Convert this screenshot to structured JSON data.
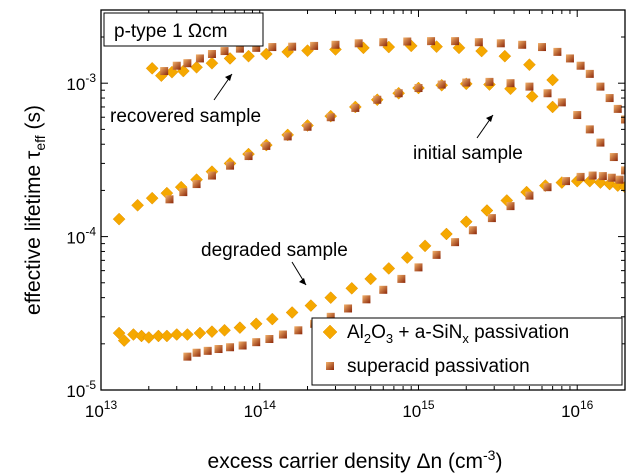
{
  "chart_data": {
    "type": "scatter",
    "xscale": "log",
    "yscale": "log",
    "xlim": [
      10000000000000.0,
      2e+16
    ],
    "ylim": [
      1e-05,
      0.003
    ],
    "xlabel": "excess carrier density Δn (cm⁻³)",
    "ylabel": "effective lifetime τeff (s)",
    "x_ticks": [
      {
        "base": "10",
        "exp": "13"
      },
      {
        "base": "10",
        "exp": "14"
      },
      {
        "base": "10",
        "exp": "15"
      },
      {
        "base": "10",
        "exp": "16"
      }
    ],
    "y_ticks": [
      {
        "base": "10",
        "exp": "-5"
      },
      {
        "base": "10",
        "exp": "-4"
      },
      {
        "base": "10",
        "exp": "-3"
      }
    ],
    "legend_position": "bottom-right",
    "grid": false,
    "box_label": "p-type 1 Ωcm",
    "annotations": [
      "recovered sample",
      "initial sample",
      "degraded sample"
    ],
    "colors": {
      "series_1": "#f5a800",
      "series_2_fill": "#a0300a",
      "series_2_light": "#f3b26a"
    },
    "series": [
      {
        "name": "Al₂O₃ + a-SiNₓ passivation",
        "marker": "diamond",
        "groups": [
          {
            "state": "recovered",
            "x": [
              21000000000000.0,
              24000000000000.0,
              28000000000000.0,
              33000000000000.0,
              40000000000000.0,
              50000000000000.0,
              65000000000000.0,
              85000000000000.0,
              110000000000000.0,
              150000000000000.0,
              200000000000000.0,
              300000000000000.0,
              450000000000000.0,
              650000000000000.0,
              900000000000000.0,
              1300000000000000.0,
              1800000000000000.0,
              2500000000000000.0,
              3500000000000000.0,
              5000000000000000.0,
              7000000000000000.0
            ],
            "y": [
              0.00125,
              0.00112,
              0.00118,
              0.0012,
              0.00127,
              0.00135,
              0.00145,
              0.0015,
              0.00155,
              0.0016,
              0.00163,
              0.00166,
              0.0017,
              0.00172,
              0.00175,
              0.00173,
              0.0017,
              0.00162,
              0.0015,
              0.00132,
              0.00105
            ]
          },
          {
            "state": "initial",
            "x": [
              13000000000000.0,
              17000000000000.0,
              21000000000000.0,
              26000000000000.0,
              32000000000000.0,
              40000000000000.0,
              50000000000000.0,
              65000000000000.0,
              85000000000000.0,
              110000000000000.0,
              150000000000000.0,
              200000000000000.0,
              280000000000000.0,
              400000000000000.0,
              550000000000000.0,
              750000000000000.0,
              1000000000000000.0,
              1400000000000000.0,
              2000000000000000.0,
              2800000000000000.0,
              3800000000000000.0,
              5200000000000000.0,
              7000000000000000.0
            ],
            "y": [
              0.00013,
              0.00016,
              0.000178,
              0.000192,
              0.00021,
              0.000235,
              0.000265,
              0.0003,
              0.000345,
              0.000395,
              0.00046,
              0.00053,
              0.00061,
              0.0007,
              0.00078,
              0.00086,
              0.00093,
              0.00097,
              0.00099,
              0.00098,
              0.00092,
              0.00082,
              0.0007
            ]
          },
          {
            "state": "degraded",
            "x": [
              13000000000000.0,
              14000000000000.0,
              16000000000000.0,
              18000000000000.0,
              20000000000000.0,
              23000000000000.0,
              26000000000000.0,
              30000000000000.0,
              35000000000000.0,
              42000000000000.0,
              50000000000000.0,
              60000000000000.0,
              75000000000000.0,
              95000000000000.0,
              120000000000000.0,
              160000000000000.0,
              210000000000000.0,
              280000000000000.0,
              380000000000000.0,
              500000000000000.0,
              650000000000000.0,
              850000000000000.0,
              1100000000000000.0,
              1500000000000000.0,
              2000000000000000.0,
              2700000000000000.0,
              3600000000000000.0,
              4800000000000000.0,
              6300000000000000.0,
              8000000000000000.0,
              1e+16,
              1.2e+16,
              1.4e+16,
              1.6e+16,
              1.8e+16,
              2e+16
            ],
            "y": [
              2.35e-05,
              2.1e-05,
              2.3e-05,
              2.25e-05,
              2.2e-05,
              2.25e-05,
              2.25e-05,
              2.3e-05,
              2.3e-05,
              2.35e-05,
              2.4e-05,
              2.45e-05,
              2.55e-05,
              2.7e-05,
              2.9e-05,
              3.2e-05,
              3.55e-05,
              4e-05,
              4.6e-05,
              5.3e-05,
              6.2e-05,
              7.3e-05,
              8.7e-05,
              0.000104,
              0.000125,
              0.000148,
              0.000172,
              0.000195,
              0.000215,
              0.000225,
              0.00023,
              0.00023,
              0.000225,
              0.00022,
              0.000215,
              0.00021
            ]
          }
        ]
      },
      {
        "name": "superacid passivation",
        "marker": "square",
        "groups": [
          {
            "state": "recovered",
            "x": [
              25000000000000.0,
              30000000000000.0,
              35000000000000.0,
              42000000000000.0,
              50000000000000.0,
              60000000000000.0,
              75000000000000.0,
              95000000000000.0,
              120000000000000.0,
              160000000000000.0,
              220000000000000.0,
              300000000000000.0,
              420000000000000.0,
              600000000000000.0,
              850000000000000.0,
              1200000000000000.0,
              1700000000000000.0,
              2400000000000000.0,
              3300000000000000.0,
              4500000000000000.0,
              6000000000000000.0,
              7500000000000000.0,
              9000000000000000.0,
              1.05e+16,
              1.2e+16,
              1.4e+16,
              1.6e+16,
              1.8e+16,
              2e+16
            ],
            "y": [
              0.0012,
              0.0013,
              0.00135,
              0.00145,
              0.00155,
              0.00162,
              0.00168,
              0.0017,
              0.00172,
              0.00173,
              0.00175,
              0.00178,
              0.00182,
              0.00185,
              0.00187,
              0.00188,
              0.00188,
              0.00185,
              0.00182,
              0.00178,
              0.00172,
              0.0016,
              0.00145,
              0.0013,
              0.00115,
              0.00095,
              0.0008,
              0.00068,
              0.00058
            ]
          },
          {
            "state": "initial",
            "x": [
              27000000000000.0,
              33000000000000.0,
              40000000000000.0,
              50000000000000.0,
              65000000000000.0,
              85000000000000.0,
              110000000000000.0,
              150000000000000.0,
              200000000000000.0,
              280000000000000.0,
              400000000000000.0,
              550000000000000.0,
              750000000000000.0,
              1000000000000000.0,
              1400000000000000.0,
              2000000000000000.0,
              2800000000000000.0,
              3800000000000000.0,
              5000000000000000.0,
              6500000000000000.0,
              8000000000000000.0,
              1e+16,
              1.2e+16,
              1.4e+16,
              1.7e+16,
              2e+16
            ],
            "y": [
              0.000175,
              0.000195,
              0.00022,
              0.00025,
              0.00029,
              0.000335,
              0.00039,
              0.00045,
              0.00052,
              0.0006,
              0.00069,
              0.00078,
              0.00086,
              0.00093,
              0.00098,
              0.00101,
              0.00102,
              0.001,
              0.00095,
              0.00086,
              0.00075,
              0.00062,
              0.0005,
              0.00041,
              0.00033,
              0.00027
            ]
          },
          {
            "state": "degraded",
            "x": [
              35000000000000.0,
              40000000000000.0,
              47000000000000.0,
              55000000000000.0,
              65000000000000.0,
              78000000000000.0,
              95000000000000.0,
              115000000000000.0,
              140000000000000.0,
              175000000000000.0,
              220000000000000.0,
              280000000000000.0,
              360000000000000.0,
              470000000000000.0,
              600000000000000.0,
              780000000000000.0,
              1000000000000000.0,
              1300000000000000.0,
              1700000000000000.0,
              2200000000000000.0,
              2900000000000000.0,
              3800000000000000.0,
              5000000000000000.0,
              6500000000000000.0,
              8500000000000000.0,
              1.05e+16,
              1.25e+16,
              1.45e+16,
              1.65e+16,
              1.85e+16
            ],
            "y": [
              1.65e-05,
              1.75e-05,
              1.8e-05,
              1.85e-05,
              1.9e-05,
              1.95e-05,
              2.05e-05,
              2.15e-05,
              2.3e-05,
              2.45e-05,
              2.7e-05,
              3e-05,
              3.4e-05,
              3.9e-05,
              4.5e-05,
              5.3e-05,
              6.3e-05,
              7.6e-05,
              9.2e-05,
              0.00011,
              0.000132,
              0.000158,
              0.000185,
              0.00021,
              0.00023,
              0.000245,
              0.00025,
              0.000248,
              0.000242,
              0.000235
            ]
          }
        ]
      }
    ]
  }
}
